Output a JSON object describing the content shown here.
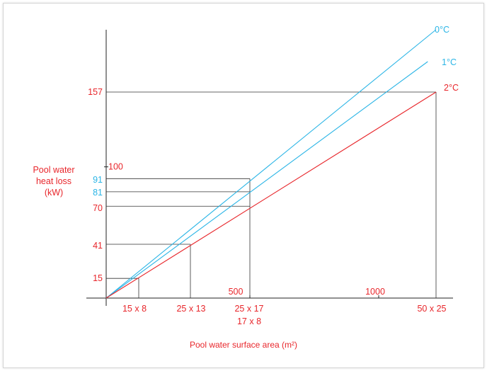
{
  "colors": {
    "red": "#e8262b",
    "cyan": "#2bb5e6",
    "axis": "#222222",
    "guide": "#333333"
  },
  "chart_data": {
    "type": "line",
    "xlabel": "Pool water surface area (m²)",
    "ylabel_lines": [
      "Pool water",
      "heat loss",
      "(kW)"
    ],
    "xlim": [
      0,
      1000
    ],
    "ylim": [
      0,
      157
    ],
    "x_ticks": [
      "500",
      "1000"
    ],
    "y_tick": "100",
    "series": [
      {
        "name": "0°C",
        "color": "#2bb5e6",
        "x": [
          0,
          1000
        ],
        "y": [
          0,
          190
        ]
      },
      {
        "name": "1°C",
        "color": "#2bb5e6",
        "x": [
          0,
          1000
        ],
        "y": [
          0,
          172
        ]
      },
      {
        "name": "2°C",
        "color": "#e8262b",
        "x": [
          0,
          1000
        ],
        "y": [
          0,
          157
        ]
      }
    ],
    "pool_sizes": [
      {
        "label": "15 x 8",
        "area": 120
      },
      {
        "label": "25 x 13",
        "area": 325
      },
      {
        "label": "25 x 17",
        "area": 425
      },
      {
        "label": "17 x 8",
        "area": 136
      },
      {
        "label": "50 x 25",
        "area": 1250
      }
    ],
    "marked_values": [
      {
        "label": "157",
        "value": 157,
        "color": "#e8262b"
      },
      {
        "label": "91",
        "value": 91,
        "color": "#2bb5e6"
      },
      {
        "label": "81",
        "value": 81,
        "color": "#2bb5e6"
      },
      {
        "label": "70",
        "value": 70,
        "color": "#e8262b"
      },
      {
        "label": "41",
        "value": 41,
        "color": "#e8262b"
      },
      {
        "label": "15",
        "value": 15,
        "color": "#e8262b"
      }
    ]
  }
}
